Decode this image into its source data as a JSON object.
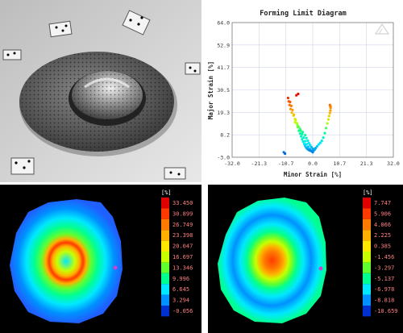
{
  "fld": {
    "title": "Forming Limit Diagram",
    "xlabel": "Minor Strain [%]",
    "ylabel": "Major Strain [%]",
    "x_ticks": [
      "-32.0",
      "-21.3",
      "-10.7",
      "0.0",
      "10.7",
      "21.3",
      "32.0"
    ],
    "y_ticks": [
      "64.0",
      "52.9",
      "41.7",
      "30.5",
      "19.3",
      "8.2",
      "-3.0"
    ]
  },
  "chart_data": {
    "type": "scatter",
    "title": "Forming Limit Diagram",
    "xlabel": "Minor Strain [%]",
    "ylabel": "Major Strain [%]",
    "xlim": [
      -32.0,
      32.0
    ],
    "ylim": [
      -3.0,
      64.0
    ],
    "grid": true,
    "x": [
      -9.8,
      -9.5,
      -9.2,
      -8.8,
      -8.3,
      -7.6,
      -6.8,
      -6.2,
      -5.5,
      -4.8,
      -4.2,
      -3.6,
      -3.0,
      -2.4,
      -1.8,
      -1.2,
      -0.6,
      0.0,
      0.6,
      1.2,
      1.8,
      2.4,
      3.0,
      3.6,
      4.2,
      4.8,
      5.3,
      5.8,
      6.2,
      6.5,
      6.8,
      7.0,
      7.1,
      7.0,
      6.8,
      -9.0,
      -8.5,
      -8.0,
      -7.5,
      -7.0,
      -6.5,
      -6.0,
      -5.5,
      -5.0,
      -4.6,
      -4.2,
      -3.8,
      -3.4,
      -3.0,
      -2.6,
      -2.2,
      -1.8,
      -1.4,
      -1.0,
      -0.6,
      -0.2,
      0.2,
      0.5,
      0.8,
      1.0,
      -7.0,
      -6.0,
      -5.0,
      -4.0,
      -3.0,
      -2.5,
      -2.0,
      -1.5,
      -1.0,
      -0.5,
      0.0,
      -11.5,
      -11.0,
      -6.5,
      -5.8
    ],
    "y": [
      26.5,
      24.8,
      23.0,
      21.0,
      19.2,
      17.8,
      15.5,
      13.8,
      12.0,
      10.2,
      8.5,
      6.8,
      5.0,
      3.5,
      2.2,
      1.0,
      0.2,
      -0.5,
      0.8,
      1.6,
      2.5,
      3.4,
      4.2,
      5.2,
      6.8,
      9.0,
      11.5,
      13.8,
      15.8,
      17.5,
      19.0,
      20.2,
      21.5,
      22.4,
      23.0,
      24.5,
      22.5,
      20.5,
      18.2,
      16.0,
      14.0,
      12.0,
      10.2,
      8.8,
      7.4,
      6.0,
      4.8,
      3.6,
      2.6,
      1.8,
      1.2,
      0.8,
      0.5,
      0.3,
      0.1,
      0.0,
      0.2,
      0.5,
      0.9,
      1.3,
      14.5,
      12.8,
      11.0,
      9.5,
      8.0,
      6.5,
      5.2,
      4.0,
      3.0,
      2.0,
      1.2,
      -0.5,
      -1.2,
      27.8,
      28.5
    ]
  },
  "contour_major": {
    "legend_unit": "[%]",
    "legend_values": [
      "33.450",
      "30.899",
      "26.749",
      "23.398",
      "20.047",
      "16.697",
      "13.346",
      "9.996",
      "6.645",
      "3.294",
      "-0.056"
    ],
    "legend_colors": [
      "#e00000",
      "#ff3a00",
      "#ff7a00",
      "#ffb000",
      "#ffe800",
      "#c8ff00",
      "#60ff30",
      "#00ff90",
      "#00e8ff",
      "#0090ff",
      "#0030d0"
    ]
  },
  "contour_minor": {
    "legend_unit": "[%]",
    "legend_values": [
      "7.747",
      "5.906",
      "4.066",
      "2.225",
      "0.385",
      "-1.456",
      "-3.297",
      "-5.137",
      "-6.978",
      "-8.818",
      "-10.659"
    ],
    "legend_colors": [
      "#e00000",
      "#ff3a00",
      "#ff7a00",
      "#ffb000",
      "#ffe800",
      "#c8ff00",
      "#60ff30",
      "#00ff90",
      "#00e8ff",
      "#0090ff",
      "#0030d0"
    ]
  }
}
